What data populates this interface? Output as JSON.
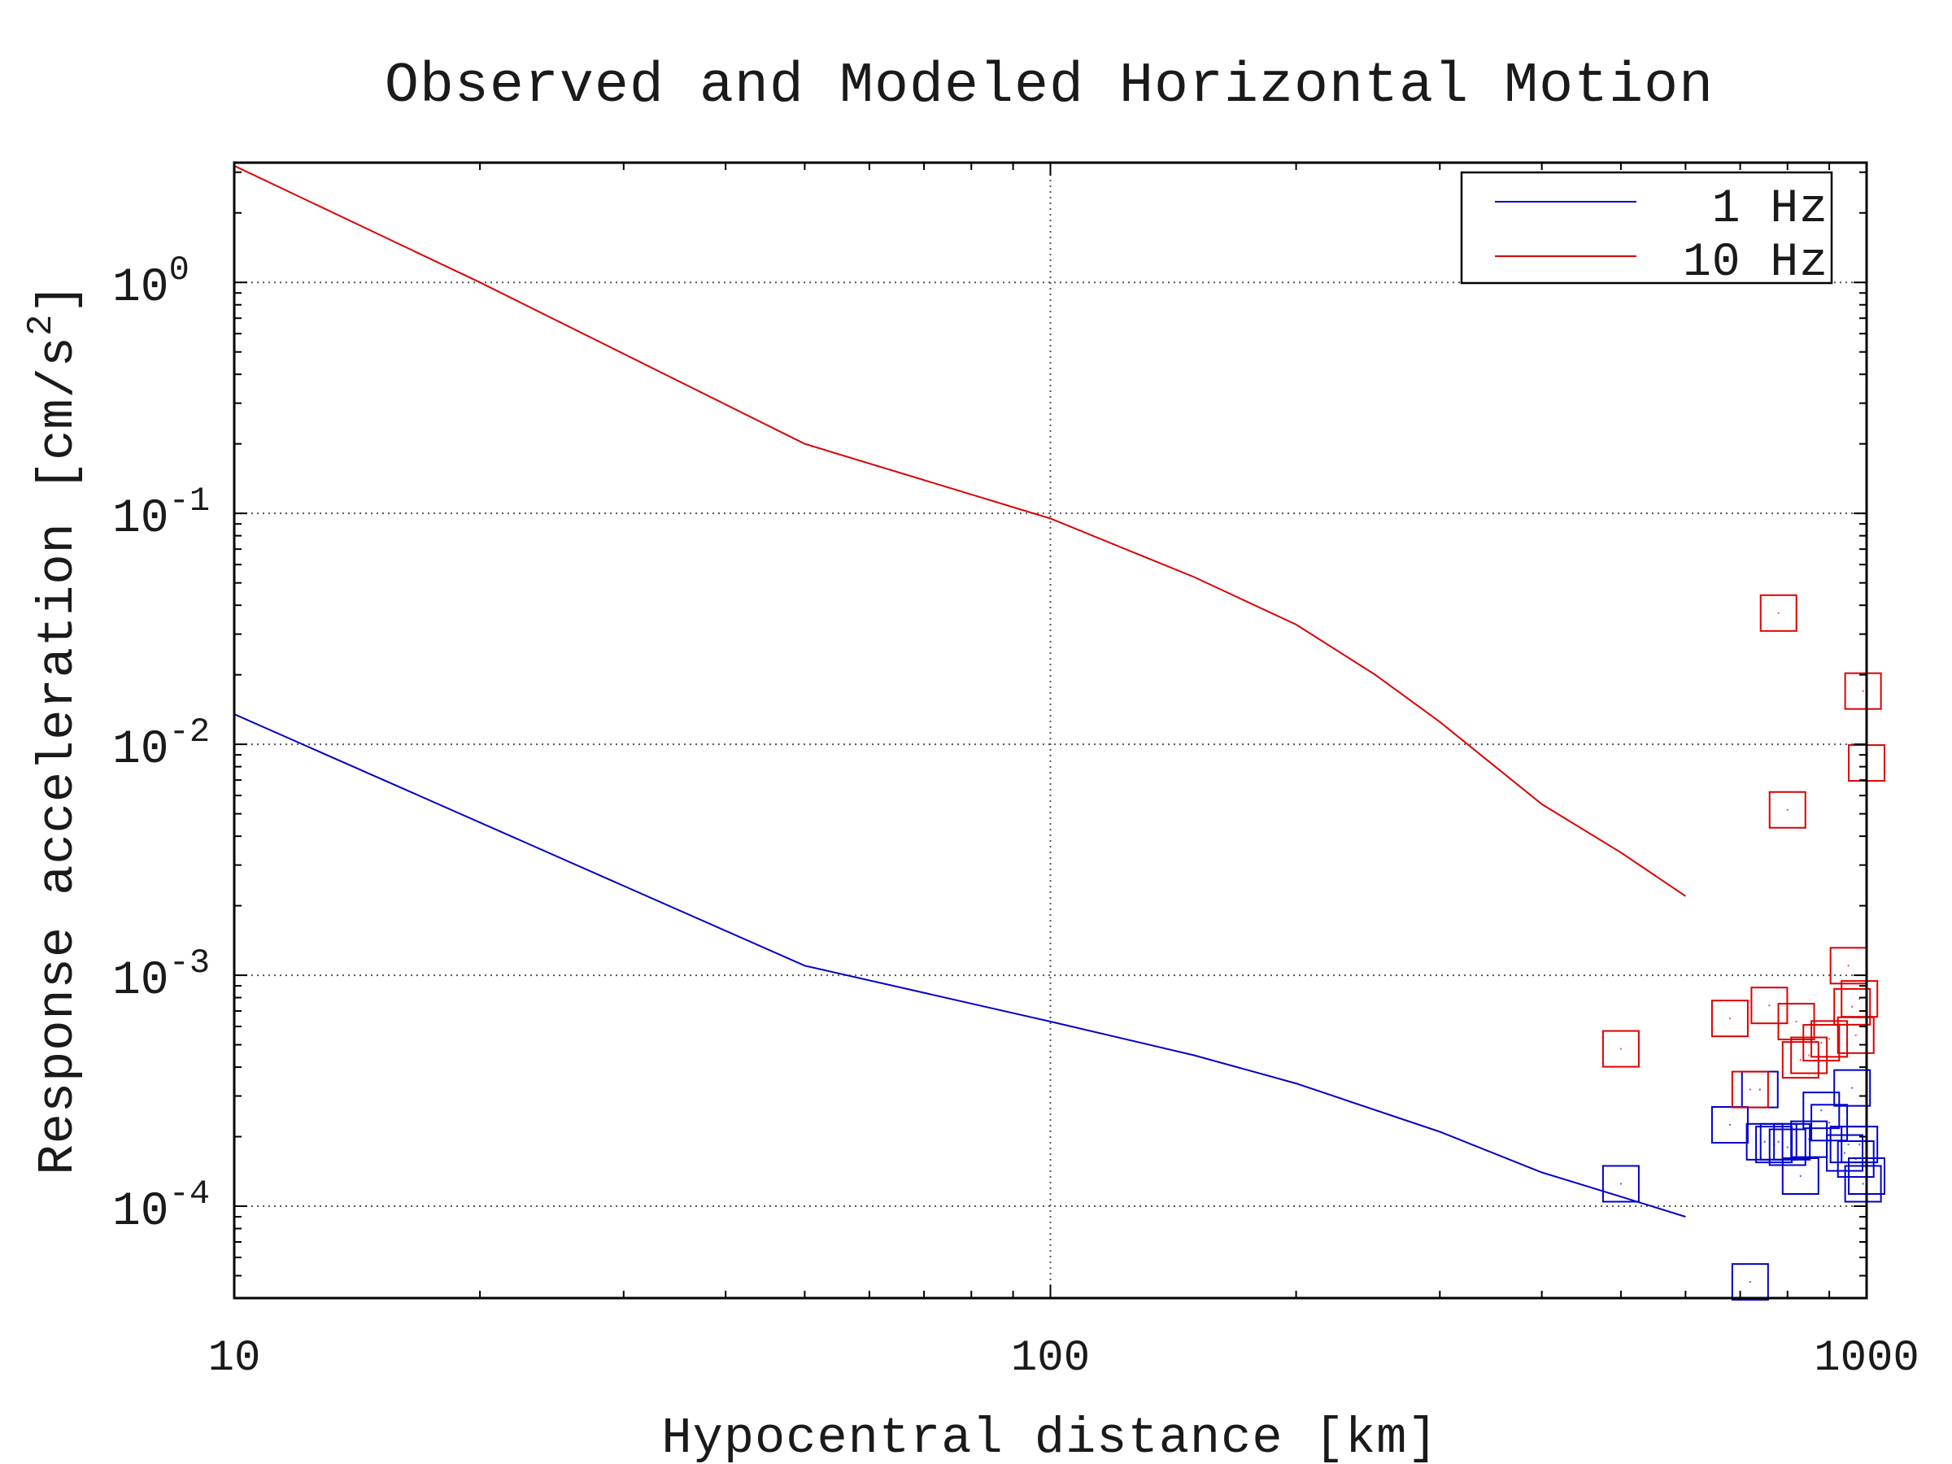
{
  "chart_data": {
    "type": "line",
    "title": "Observed and Modeled Horizontal Motion",
    "xlabel": "Hypocentral distance [km]",
    "ylabel": {
      "prefix": "Response acceleration [cm/s",
      "sup": "2",
      "suffix": "]"
    },
    "x_scale": "log",
    "y_scale": "log",
    "xlim": [
      10,
      1000
    ],
    "ylim": [
      4e-05,
      3.3
    ],
    "grid": true,
    "legend_position": "top-right",
    "x_ticks": [
      {
        "value": 10,
        "label": "10"
      },
      {
        "value": 100,
        "label": "100"
      },
      {
        "value": 1000,
        "label": "1000"
      }
    ],
    "y_ticks": [
      {
        "value": 0.0001,
        "base": "10",
        "exp": "-4"
      },
      {
        "value": 0.001,
        "base": "10",
        "exp": "-3"
      },
      {
        "value": 0.01,
        "base": "10",
        "exp": "-2"
      },
      {
        "value": 0.1,
        "base": "10",
        "exp": "-1"
      },
      {
        "value": 1,
        "base": "10",
        "exp": "0"
      }
    ],
    "series": [
      {
        "name": "1 Hz",
        "color": "#0000cc",
        "x": [
          10,
          50,
          100,
          150,
          200,
          300,
          400,
          500,
          600
        ],
        "y": [
          0.0135,
          0.0011,
          0.00063,
          0.00045,
          0.00034,
          0.00021,
          0.00014,
          0.00011,
          9e-05
        ],
        "observed": {
          "x": [
            500,
            680,
            720,
            740,
            750,
            770,
            780,
            800,
            810,
            830,
            850,
            880,
            900,
            940,
            950,
            960,
            970,
            980,
            990,
            1000
          ],
          "y": [
            0.000125,
            0.000225,
            4.7e-05,
            0.00032,
            0.00019,
            0.000185,
            0.00019,
            0.00018,
            0.00019,
            0.000135,
            0.000195,
            0.00026,
            0.00023,
            0.00017,
            0.000185,
            0.000325,
            0.00016,
            0.000185,
            0.000125,
            0.000135
          ]
        }
      },
      {
        "name": "10 Hz",
        "color": "#dd0000",
        "x": [
          10,
          20,
          50,
          100,
          150,
          200,
          250,
          300,
          400,
          500,
          600
        ],
        "y": [
          3.2,
          1.0,
          0.2,
          0.095,
          0.053,
          0.033,
          0.02,
          0.0125,
          0.0055,
          0.0034,
          0.0022
        ],
        "observed": {
          "x": [
            500,
            680,
            720,
            760,
            780,
            800,
            820,
            830,
            850,
            880,
            900,
            950,
            960,
            970,
            980,
            990,
            1000
          ],
          "y": [
            0.00048,
            0.00065,
            0.00032,
            0.00074,
            0.037,
            0.0052,
            0.00063,
            0.00043,
            0.00045,
            0.00051,
            0.00053,
            0.0011,
            0.00073,
            0.00055,
            0.00079,
            0.017,
            0.0083
          ]
        }
      }
    ]
  }
}
